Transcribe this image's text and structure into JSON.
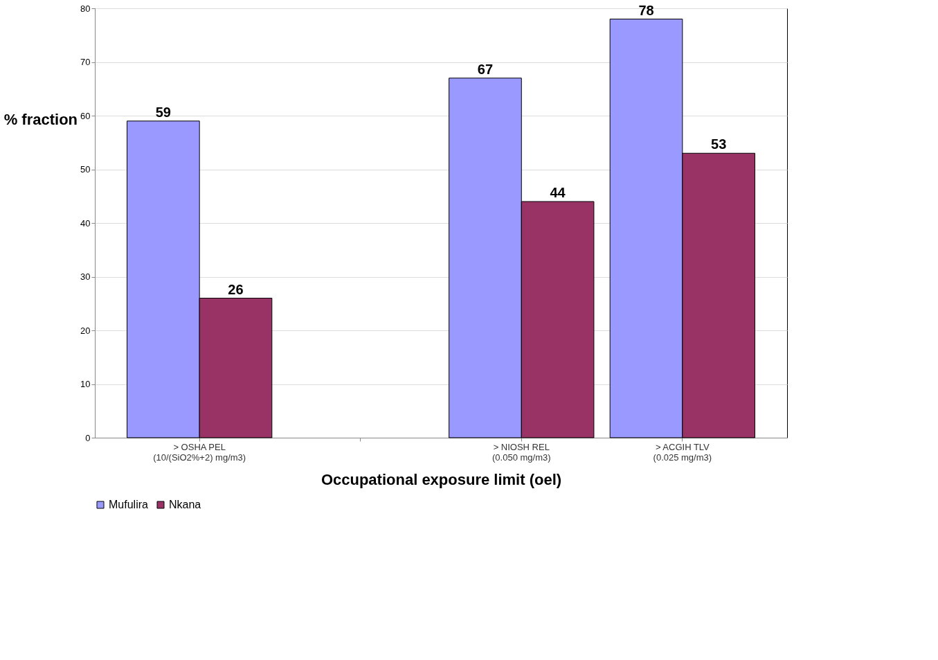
{
  "chart_data": {
    "type": "bar",
    "xlabel": "Occupational exposure limit (oel)",
    "ylabel": "% fraction",
    "categories": [
      "> OSHA PEL\n(10/(SiO2%+2)  mg/m3)",
      null,
      "> NIOSH REL\n(0.050 mg/m3)",
      "> ACGIH TLV\n(0.025 mg/m3)"
    ],
    "series": [
      {
        "name": "Mufulira",
        "color": "#9999ff",
        "values": [
          59,
          null,
          67,
          78
        ]
      },
      {
        "name": "Nkana",
        "color": "#993366",
        "values": [
          26,
          null,
          44,
          53
        ]
      }
    ],
    "ylim": [
      0,
      80
    ],
    "yticks": [
      0,
      10,
      20,
      30,
      40,
      50,
      60,
      70,
      80
    ],
    "grid": "y",
    "legend": "bottom",
    "data_labels": true
  }
}
